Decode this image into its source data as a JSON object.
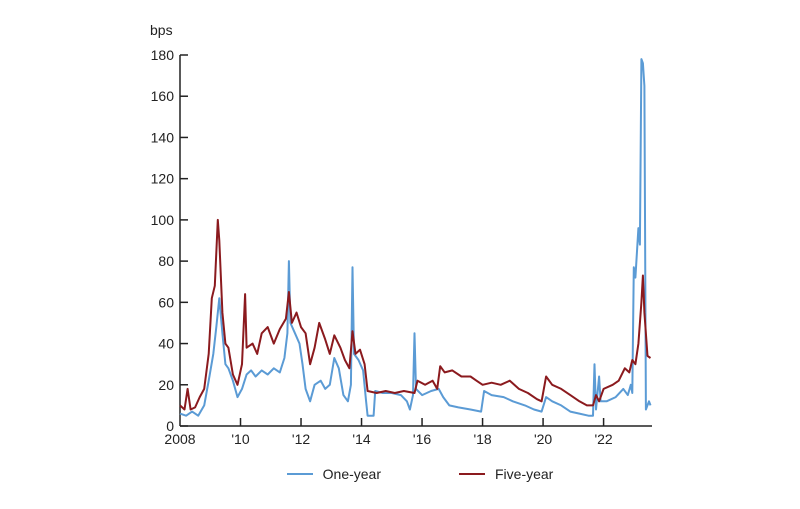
{
  "chart_data": {
    "type": "line",
    "title": "",
    "ylabel": "bps",
    "xlabel": "",
    "ylim": [
      0,
      180
    ],
    "xlim": [
      2008,
      2023.6
    ],
    "yticks": [
      0,
      20,
      40,
      60,
      80,
      100,
      120,
      140,
      160,
      180
    ],
    "xticks": [
      {
        "value": 2008,
        "label": "2008"
      },
      {
        "value": 2010,
        "label": "'10"
      },
      {
        "value": 2012,
        "label": "'12"
      },
      {
        "value": 2014,
        "label": "'14"
      },
      {
        "value": 2016,
        "label": "'16"
      },
      {
        "value": 2018,
        "label": "'18"
      },
      {
        "value": 2020,
        "label": "'20"
      },
      {
        "value": 2022,
        "label": "'22"
      }
    ],
    "grid": false,
    "legend_position": "bottom",
    "series": [
      {
        "name": "One-year",
        "color": "#5b9bd5",
        "points": [
          [
            2008.0,
            6
          ],
          [
            2008.2,
            5
          ],
          [
            2008.4,
            7
          ],
          [
            2008.6,
            5
          ],
          [
            2008.8,
            10
          ],
          [
            2008.95,
            22
          ],
          [
            2009.1,
            35
          ],
          [
            2009.2,
            48
          ],
          [
            2009.3,
            62
          ],
          [
            2009.4,
            45
          ],
          [
            2009.5,
            30
          ],
          [
            2009.6,
            28
          ],
          [
            2009.75,
            22
          ],
          [
            2009.9,
            14
          ],
          [
            2010.05,
            18
          ],
          [
            2010.2,
            25
          ],
          [
            2010.35,
            27
          ],
          [
            2010.5,
            24
          ],
          [
            2010.7,
            27
          ],
          [
            2010.9,
            25
          ],
          [
            2011.1,
            28
          ],
          [
            2011.3,
            26
          ],
          [
            2011.45,
            33
          ],
          [
            2011.55,
            45
          ],
          [
            2011.6,
            80
          ],
          [
            2011.65,
            50
          ],
          [
            2011.8,
            45
          ],
          [
            2011.95,
            40
          ],
          [
            2012.05,
            30
          ],
          [
            2012.15,
            18
          ],
          [
            2012.3,
            12
          ],
          [
            2012.45,
            20
          ],
          [
            2012.65,
            22
          ],
          [
            2012.8,
            18
          ],
          [
            2012.95,
            20
          ],
          [
            2013.1,
            33
          ],
          [
            2013.25,
            28
          ],
          [
            2013.4,
            15
          ],
          [
            2013.55,
            12
          ],
          [
            2013.65,
            20
          ],
          [
            2013.7,
            77
          ],
          [
            2013.75,
            35
          ],
          [
            2013.9,
            32
          ],
          [
            2014.05,
            27
          ],
          [
            2014.15,
            12
          ],
          [
            2014.2,
            5
          ],
          [
            2014.4,
            5
          ],
          [
            2014.45,
            17
          ],
          [
            2014.7,
            16
          ],
          [
            2015.0,
            16
          ],
          [
            2015.3,
            15
          ],
          [
            2015.5,
            12
          ],
          [
            2015.6,
            8
          ],
          [
            2015.7,
            15
          ],
          [
            2015.75,
            45
          ],
          [
            2015.8,
            18
          ],
          [
            2016.0,
            15
          ],
          [
            2016.3,
            17
          ],
          [
            2016.55,
            18
          ],
          [
            2016.7,
            14
          ],
          [
            2016.9,
            10
          ],
          [
            2017.2,
            9
          ],
          [
            2017.6,
            8
          ],
          [
            2017.95,
            7
          ],
          [
            2018.05,
            17
          ],
          [
            2018.3,
            15
          ],
          [
            2018.7,
            14
          ],
          [
            2019.0,
            12
          ],
          [
            2019.4,
            10
          ],
          [
            2019.7,
            8
          ],
          [
            2019.95,
            7
          ],
          [
            2020.1,
            14
          ],
          [
            2020.3,
            12
          ],
          [
            2020.6,
            10
          ],
          [
            2020.9,
            7
          ],
          [
            2021.2,
            6
          ],
          [
            2021.5,
            5
          ],
          [
            2021.65,
            5
          ],
          [
            2021.7,
            30
          ],
          [
            2021.75,
            8
          ],
          [
            2021.85,
            24
          ],
          [
            2021.9,
            12
          ],
          [
            2022.1,
            12
          ],
          [
            2022.4,
            14
          ],
          [
            2022.65,
            18
          ],
          [
            2022.8,
            15
          ],
          [
            2022.9,
            20
          ],
          [
            2022.95,
            16
          ],
          [
            2023.0,
            77
          ],
          [
            2023.05,
            72
          ],
          [
            2023.15,
            96
          ],
          [
            2023.2,
            88
          ],
          [
            2023.25,
            178
          ],
          [
            2023.3,
            176
          ],
          [
            2023.35,
            165
          ],
          [
            2023.4,
            8
          ],
          [
            2023.5,
            12
          ],
          [
            2023.55,
            10
          ]
        ]
      },
      {
        "name": "Five-year",
        "color": "#8b1a1e",
        "points": [
          [
            2008.0,
            10
          ],
          [
            2008.15,
            8
          ],
          [
            2008.25,
            18
          ],
          [
            2008.35,
            8
          ],
          [
            2008.5,
            9
          ],
          [
            2008.65,
            14
          ],
          [
            2008.8,
            18
          ],
          [
            2008.95,
            35
          ],
          [
            2009.05,
            62
          ],
          [
            2009.15,
            68
          ],
          [
            2009.25,
            100
          ],
          [
            2009.3,
            90
          ],
          [
            2009.4,
            55
          ],
          [
            2009.5,
            40
          ],
          [
            2009.6,
            38
          ],
          [
            2009.75,
            25
          ],
          [
            2009.9,
            20
          ],
          [
            2010.05,
            30
          ],
          [
            2010.15,
            64
          ],
          [
            2010.2,
            38
          ],
          [
            2010.4,
            40
          ],
          [
            2010.55,
            35
          ],
          [
            2010.7,
            45
          ],
          [
            2010.9,
            48
          ],
          [
            2011.1,
            40
          ],
          [
            2011.3,
            47
          ],
          [
            2011.5,
            52
          ],
          [
            2011.6,
            65
          ],
          [
            2011.7,
            50
          ],
          [
            2011.85,
            55
          ],
          [
            2012.0,
            48
          ],
          [
            2012.15,
            45
          ],
          [
            2012.3,
            30
          ],
          [
            2012.45,
            38
          ],
          [
            2012.6,
            50
          ],
          [
            2012.8,
            42
          ],
          [
            2012.95,
            35
          ],
          [
            2013.1,
            44
          ],
          [
            2013.3,
            38
          ],
          [
            2013.45,
            32
          ],
          [
            2013.6,
            28
          ],
          [
            2013.7,
            46
          ],
          [
            2013.8,
            35
          ],
          [
            2013.95,
            37
          ],
          [
            2014.1,
            30
          ],
          [
            2014.2,
            17
          ],
          [
            2014.5,
            16
          ],
          [
            2014.8,
            17
          ],
          [
            2015.1,
            16
          ],
          [
            2015.4,
            17
          ],
          [
            2015.75,
            16
          ],
          [
            2015.85,
            22
          ],
          [
            2016.1,
            20
          ],
          [
            2016.35,
            22
          ],
          [
            2016.5,
            18
          ],
          [
            2016.6,
            29
          ],
          [
            2016.75,
            26
          ],
          [
            2017.0,
            27
          ],
          [
            2017.3,
            24
          ],
          [
            2017.6,
            24
          ],
          [
            2017.8,
            22
          ],
          [
            2018.0,
            20
          ],
          [
            2018.3,
            21
          ],
          [
            2018.6,
            20
          ],
          [
            2018.9,
            22
          ],
          [
            2019.2,
            18
          ],
          [
            2019.5,
            16
          ],
          [
            2019.8,
            13
          ],
          [
            2019.95,
            12
          ],
          [
            2020.1,
            24
          ],
          [
            2020.3,
            20
          ],
          [
            2020.6,
            18
          ],
          [
            2020.9,
            15
          ],
          [
            2021.2,
            12
          ],
          [
            2021.45,
            10
          ],
          [
            2021.65,
            10
          ],
          [
            2021.75,
            15
          ],
          [
            2021.85,
            12
          ],
          [
            2022.0,
            18
          ],
          [
            2022.3,
            20
          ],
          [
            2022.5,
            22
          ],
          [
            2022.7,
            28
          ],
          [
            2022.85,
            26
          ],
          [
            2022.95,
            32
          ],
          [
            2023.05,
            30
          ],
          [
            2023.15,
            40
          ],
          [
            2023.25,
            60
          ],
          [
            2023.3,
            73
          ],
          [
            2023.35,
            55
          ],
          [
            2023.45,
            34
          ],
          [
            2023.55,
            33
          ]
        ]
      }
    ]
  },
  "legend": {
    "items": [
      {
        "label": "One-year",
        "color": "#5b9bd5"
      },
      {
        "label": "Five-year",
        "color": "#8b1a1e"
      }
    ]
  }
}
